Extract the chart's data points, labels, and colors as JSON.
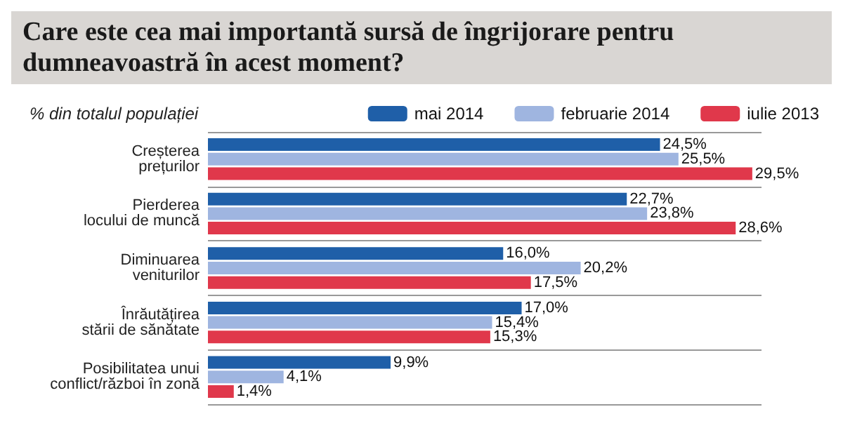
{
  "chart_data": {
    "type": "bar",
    "orientation": "horizontal",
    "title": "Care este cea mai importantă sursă de îngrijorare pentru dumneavoastră în acest moment?",
    "subtitle": "% din totalul populației",
    "categories": [
      "Creșterea\nprețurilor",
      "Pierderea\nlocului de muncă",
      "Diminuarea\nveniturilor",
      "Înrăutățirea\nstării de sănătate",
      "Posibilitatea unui\nconflict/război în zonă"
    ],
    "series": [
      {
        "name": "mai 2014",
        "color": "#1f5fa8",
        "values": [
          24.5,
          22.7,
          16.0,
          17.0,
          9.9
        ],
        "value_labels": [
          "24,5%",
          "22,7%",
          "16,0%",
          "17,0%",
          "9,9%"
        ]
      },
      {
        "name": "februarie 2014",
        "color": "#9fb5e0",
        "values": [
          25.5,
          23.8,
          20.2,
          15.4,
          4.1
        ],
        "value_labels": [
          "25,5%",
          "23,8%",
          "20,2%",
          "15,4%",
          "4,1%"
        ]
      },
      {
        "name": "iulie 2013",
        "color": "#e0384b",
        "values": [
          29.5,
          28.6,
          17.5,
          15.3,
          1.4
        ],
        "value_labels": [
          "29,5%",
          "28,6%",
          "17,5%",
          "15,3%",
          "1,4%"
        ]
      }
    ],
    "legend": "top right",
    "grid": "y"
  }
}
